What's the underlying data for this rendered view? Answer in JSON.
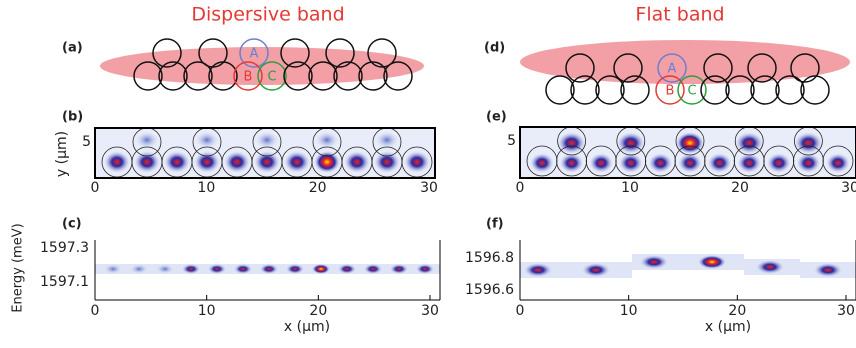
{
  "columns": [
    {
      "title": "Dispersive band",
      "panels": [
        {
          "label": "(a)",
          "sites": [
            "A",
            "B",
            "C"
          ]
        },
        {
          "label": "(b)",
          "ylabel": "y (μm)",
          "yticks": [
            5
          ],
          "xticks": [
            0,
            10,
            20,
            30
          ]
        },
        {
          "label": "(c)",
          "ylabel": "Energy (meV)",
          "yticks": [
            1597.3,
            1597.1
          ],
          "xticks": [
            0,
            10,
            20,
            30
          ],
          "xlabel": "x (μm)"
        }
      ]
    },
    {
      "title": "Flat band",
      "panels": [
        {
          "label": "(d)",
          "sites": [
            "A",
            "B",
            "C"
          ]
        },
        {
          "label": "(e)",
          "yticks": [
            5
          ],
          "xticks": [
            0,
            10,
            20,
            30
          ]
        },
        {
          "label": "(f)",
          "yticks": [
            1596.8,
            1596.6
          ],
          "xticks": [
            0,
            10,
            20,
            30
          ],
          "xlabel": "x (μm)"
        }
      ]
    }
  ]
}
